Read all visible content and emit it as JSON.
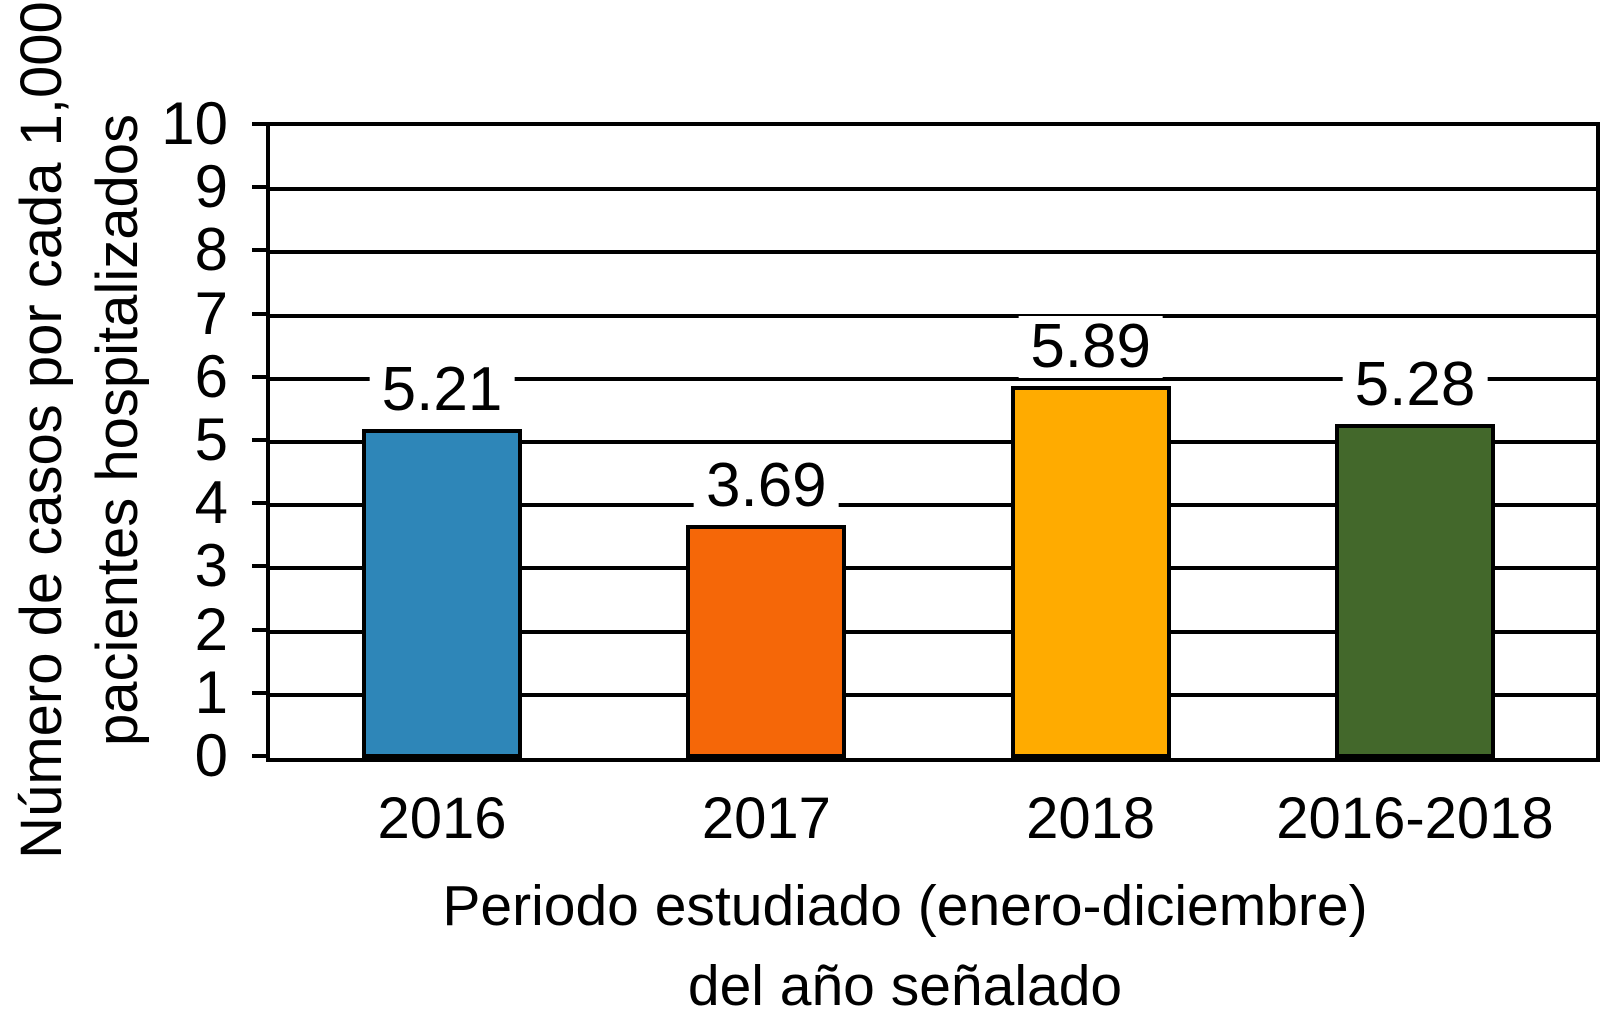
{
  "chart_data": {
    "type": "bar",
    "categories": [
      "2016",
      "2017",
      "2018",
      "2016-2018"
    ],
    "values": [
      5.21,
      3.69,
      5.89,
      5.28
    ],
    "data_labels": [
      "5.21",
      "3.69",
      "5.89",
      "5.28"
    ],
    "bar_colors": [
      "#2E86B8",
      "#F56708",
      "#FFAB00",
      "#43682B"
    ],
    "bar_border_color": "#000000",
    "ylabel_line1": "Número de casos por cada 1,000",
    "ylabel_line2": "pacientes hospitalizados",
    "xlabel_line1": "Periodo estudiado (enero-diciembre)",
    "xlabel_line2": "del año señalado",
    "ylim": [
      0,
      10
    ],
    "ytick_step": 1,
    "ytick_labels": [
      "0",
      "1",
      "2",
      "3",
      "4",
      "5",
      "6",
      "7",
      "8",
      "9",
      "10"
    ],
    "grid": "on",
    "gridline_color": "#000000",
    "axis_color": "#000000",
    "background": "#FFFFFF",
    "legend": "none",
    "title": ""
  }
}
